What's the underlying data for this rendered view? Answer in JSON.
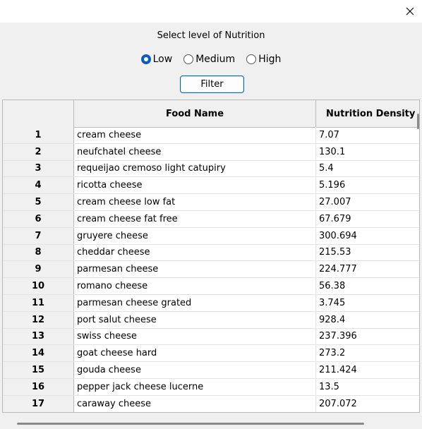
{
  "window": {
    "close_icon": "close-icon"
  },
  "heading": "Select level of Nutrition",
  "radios": [
    {
      "label": "Low",
      "checked": true
    },
    {
      "label": "Medium",
      "checked": false
    },
    {
      "label": "High",
      "checked": false
    }
  ],
  "filter_label": "Filter",
  "table": {
    "columns": [
      "",
      "Food Name",
      "Nutrition Density"
    ],
    "rows": [
      [
        "1",
        "cream cheese",
        "7.07"
      ],
      [
        "2",
        "neufchatel cheese",
        "130.1"
      ],
      [
        "3",
        "requeijao cremoso light catupiry",
        "5.4"
      ],
      [
        "4",
        "ricotta cheese",
        "5.196"
      ],
      [
        "5",
        "cream cheese low fat",
        "27.007"
      ],
      [
        "6",
        "cream cheese fat free",
        "67.679"
      ],
      [
        "7",
        "gruyere cheese",
        "300.694"
      ],
      [
        "8",
        "cheddar cheese",
        "215.53"
      ],
      [
        "9",
        "parmesan cheese",
        "224.777"
      ],
      [
        "10",
        "romano cheese",
        "56.38"
      ],
      [
        "11",
        "parmesan cheese grated",
        "3.745"
      ],
      [
        "12",
        "port salut cheese",
        "928.4"
      ],
      [
        "13",
        "swiss cheese",
        "237.396"
      ],
      [
        "14",
        "goat cheese hard",
        "273.2"
      ],
      [
        "15",
        "gouda cheese",
        "211.424"
      ],
      [
        "16",
        "pepper jack cheese lucerne",
        "13.5"
      ],
      [
        "17",
        "caraway cheese",
        "207.072"
      ]
    ]
  }
}
